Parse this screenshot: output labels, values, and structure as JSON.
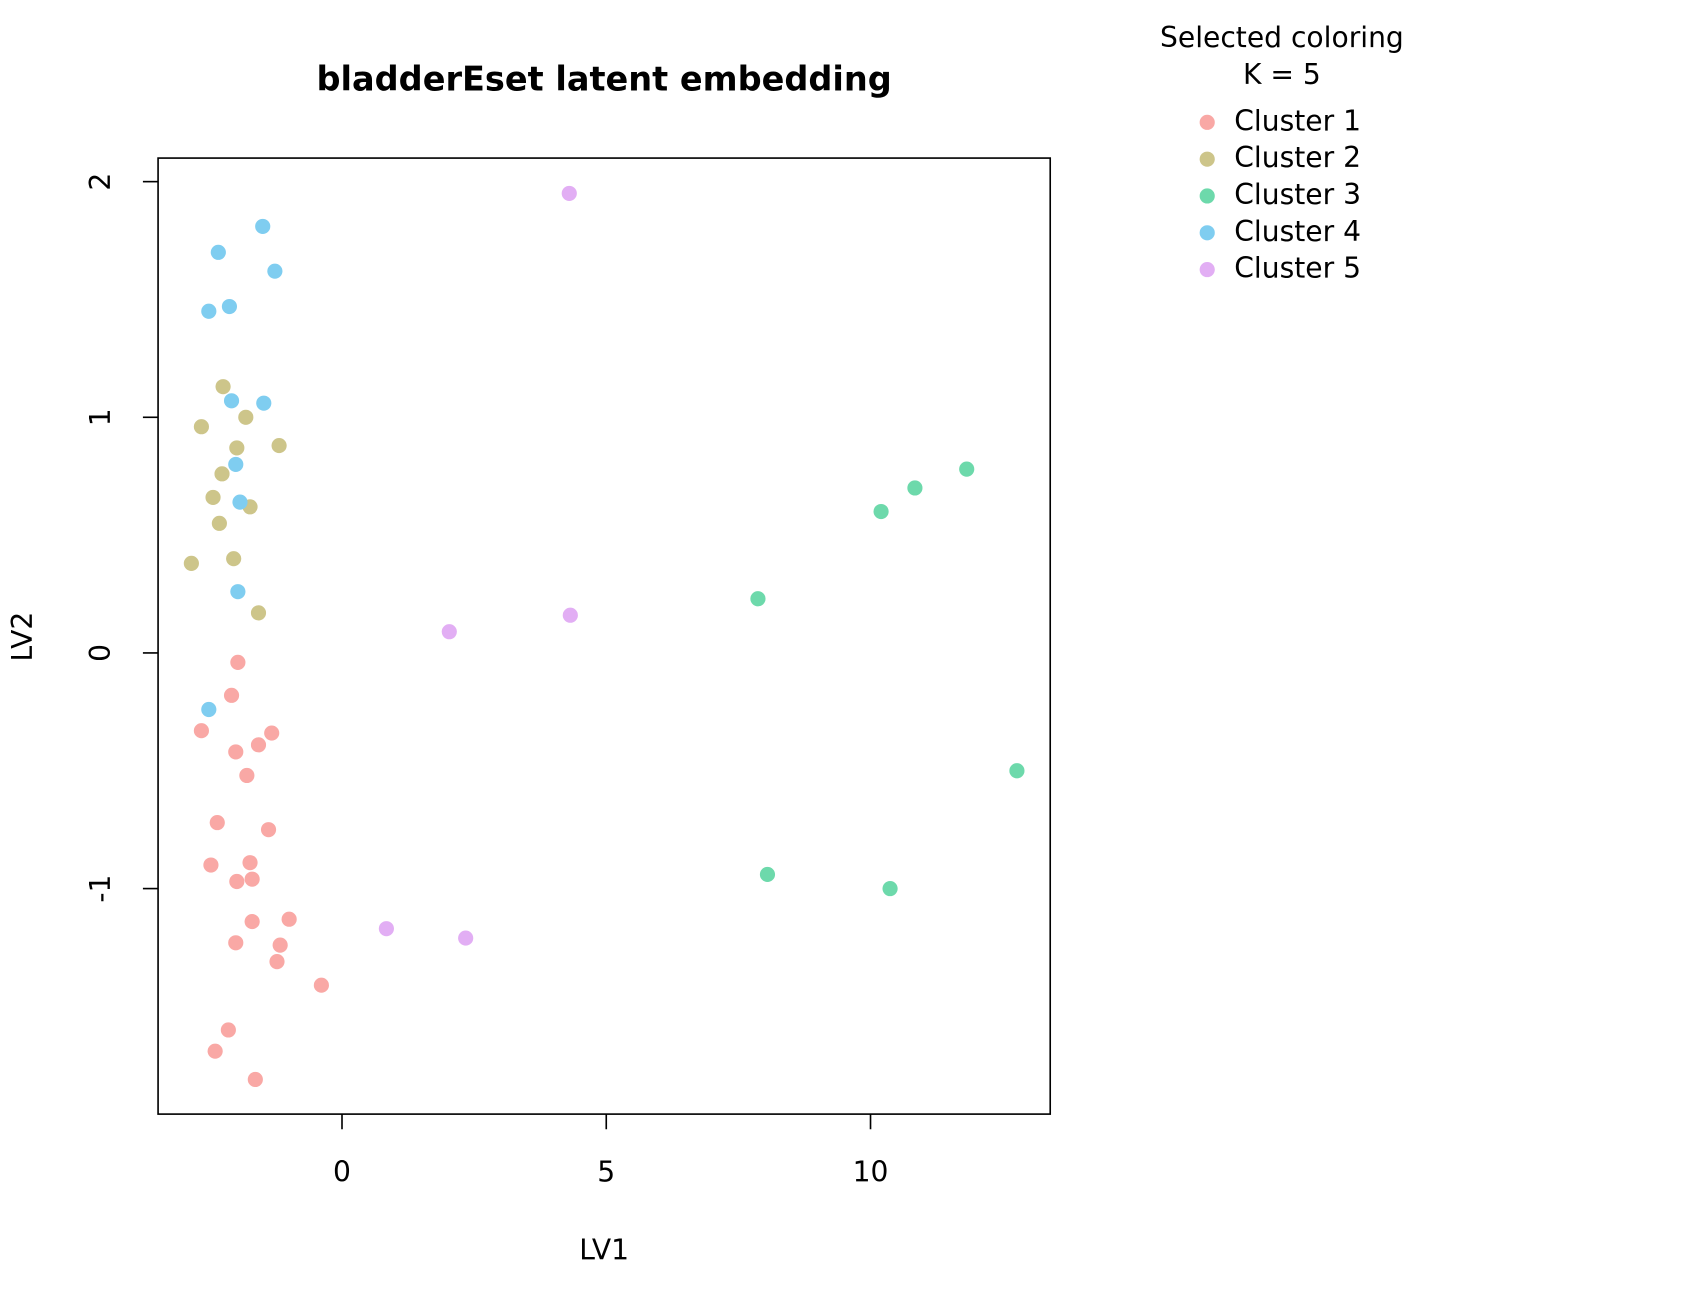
{
  "chart_data": {
    "type": "scatter",
    "title": "bladderEset latent embedding",
    "xlabel": "LV1",
    "ylabel": "LV2",
    "legend_title": [
      "Selected coloring",
      "K = 5"
    ],
    "legend_position": "outside-right",
    "xlim": [
      -3.48,
      13.4
    ],
    "ylim": [
      -1.957,
      2.1
    ],
    "xticks": [
      0,
      5,
      10
    ],
    "yticks": [
      -1,
      0,
      1,
      2
    ],
    "series": [
      {
        "name": "Cluster 1",
        "color": "#f9a8a5",
        "x": [
          -1.97,
          -2.09,
          -2.66,
          -1.33,
          -2.01,
          -1.58,
          -1.8,
          -2.36,
          -1.39,
          -2.48,
          -1.74,
          -1.99,
          -1.7,
          -1.7,
          -1.0,
          -2.01,
          -1.17,
          -1.23,
          -0.39,
          -2.15,
          -2.4,
          -1.64
        ],
        "values": [
          -0.04,
          -0.18,
          -0.33,
          -0.34,
          -0.42,
          -0.39,
          -0.52,
          -0.72,
          -0.75,
          -0.9,
          -0.89,
          -0.97,
          -0.96,
          -1.14,
          -1.13,
          -1.23,
          -1.24,
          -1.31,
          -1.41,
          -1.6,
          -1.69,
          -1.81
        ]
      },
      {
        "name": "Cluster 2",
        "color": "#cdc58a",
        "x": [
          -2.25,
          -2.66,
          -1.82,
          -1.99,
          -1.19,
          -2.27,
          -2.44,
          -1.74,
          -2.32,
          -2.85,
          -2.05,
          -1.58
        ],
        "values": [
          1.13,
          0.96,
          1.0,
          0.87,
          0.88,
          0.76,
          0.66,
          0.62,
          0.55,
          0.38,
          0.4,
          0.17
        ]
      },
      {
        "name": "Cluster 3",
        "color": "#6dd9ab",
        "x": [
          11.82,
          10.84,
          10.2,
          7.87,
          12.77,
          8.05,
          10.37
        ],
        "values": [
          0.78,
          0.7,
          0.6,
          0.23,
          -0.5,
          -0.94,
          -1.0
        ]
      },
      {
        "name": "Cluster 4",
        "color": "#7fcdf0",
        "x": [
          -1.5,
          -2.34,
          -1.27,
          -2.13,
          -2.52,
          -2.09,
          -1.48,
          -2.01,
          -1.93,
          -1.97,
          -2.52
        ],
        "values": [
          1.81,
          1.7,
          1.62,
          1.47,
          1.45,
          1.07,
          1.06,
          0.8,
          0.64,
          0.26,
          -0.24
        ]
      },
      {
        "name": "Cluster 5",
        "color": "#e2aef4",
        "x": [
          4.3,
          4.32,
          2.03,
          0.84,
          2.34
        ],
        "values": [
          1.95,
          0.16,
          0.09,
          -1.17,
          -1.21
        ]
      }
    ]
  }
}
